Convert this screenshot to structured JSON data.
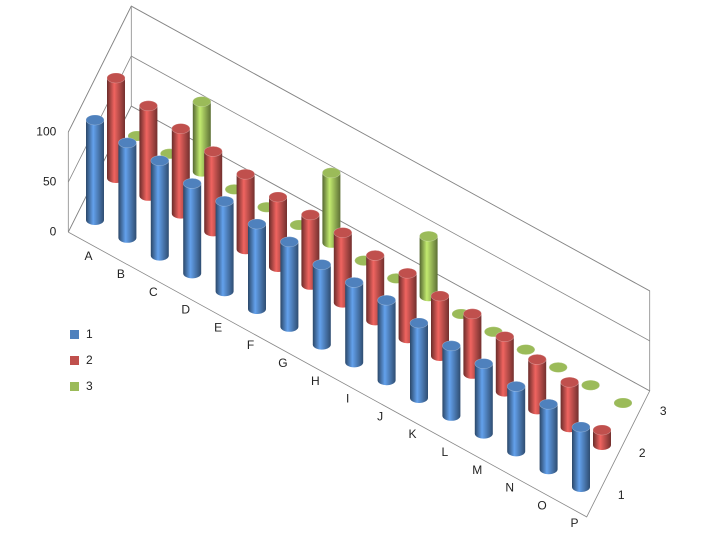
{
  "chart_data": {
    "type": "bar3d",
    "categories": [
      "A",
      "B",
      "C",
      "D",
      "E",
      "F",
      "G",
      "H",
      "I",
      "J",
      "K",
      "L",
      "M",
      "N",
      "O",
      "P"
    ],
    "series": [
      {
        "name": "1",
        "color": "#4f81bd",
        "values": [
          100,
          95,
          95,
          90,
          90,
          85,
          85,
          80,
          80,
          80,
          75,
          70,
          70,
          65,
          65,
          60
        ]
      },
      {
        "name": "2",
        "color": "#c0504d",
        "values": [
          100,
          90,
          85,
          80,
          75,
          70,
          70,
          70,
          65,
          65,
          60,
          60,
          55,
          50,
          45,
          15
        ]
      },
      {
        "name": "3",
        "color": "#9bbb59",
        "values": [
          0,
          0,
          70,
          0,
          0,
          0,
          70,
          0,
          0,
          60,
          0,
          0,
          0,
          0,
          0,
          0
        ]
      }
    ],
    "ylim": [
      0,
      100
    ],
    "yticks": [
      0,
      50,
      100
    ],
    "grid": true,
    "legend": "left"
  }
}
